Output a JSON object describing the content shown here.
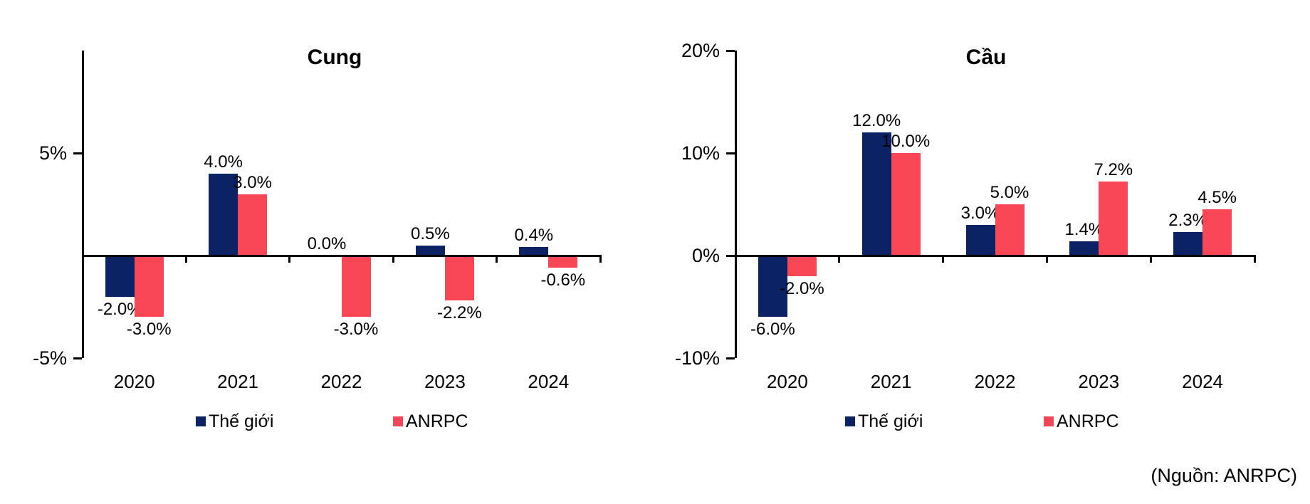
{
  "page": {
    "source_note": "(Nguồn: ANRPC)"
  },
  "chart_data": [
    {
      "type": "bar",
      "title": "Cung",
      "categories": [
        "2020",
        "2021",
        "2022",
        "2023",
        "2024"
      ],
      "series": [
        {
          "name": "Thế giới",
          "color": "#0b2365",
          "values": [
            -2.0,
            4.0,
            0.0,
            0.5,
            0.4
          ],
          "value_labels": [
            "-2.0%",
            "4.0%",
            "0.0%",
            "0.5%",
            "0.4%"
          ]
        },
        {
          "name": "ANRPC",
          "color": "#f94755",
          "values": [
            -3.0,
            3.0,
            -3.0,
            -2.2,
            -0.6
          ],
          "value_labels": [
            "-3.0%",
            "3.0%",
            "-3.0%",
            "-2.2%",
            "-0.6%"
          ]
        }
      ],
      "y_ticks": [
        {
          "label": "5%",
          "value": 5
        },
        {
          "label": "-5%",
          "value": -5
        }
      ],
      "ylim": [
        -5,
        10
      ],
      "xlabel": "",
      "ylabel": "",
      "grid": false,
      "legend_position": "bottom"
    },
    {
      "type": "bar",
      "title": "Cầu",
      "categories": [
        "2020",
        "2021",
        "2022",
        "2023",
        "2024"
      ],
      "series": [
        {
          "name": "Thế giới",
          "color": "#0b2365",
          "values": [
            -6.0,
            12.0,
            3.0,
            1.4,
            2.3
          ],
          "value_labels": [
            "-6.0%",
            "12.0%",
            "3.0%",
            "1.4%",
            "2.3%"
          ]
        },
        {
          "name": "ANRPC",
          "color": "#f94755",
          "values": [
            -2.0,
            10.0,
            5.0,
            7.2,
            4.5
          ],
          "value_labels": [
            "-2.0%",
            "10.0%",
            "5.0%",
            "7.2%",
            "4.5%"
          ]
        }
      ],
      "y_ticks": [
        {
          "label": "20%",
          "value": 20
        },
        {
          "label": "10%",
          "value": 10
        },
        {
          "label": "0%",
          "value": 0
        },
        {
          "label": "-10%",
          "value": -10
        }
      ],
      "ylim": [
        -10,
        20
      ],
      "xlabel": "",
      "ylabel": "",
      "grid": false,
      "legend_position": "bottom"
    }
  ]
}
